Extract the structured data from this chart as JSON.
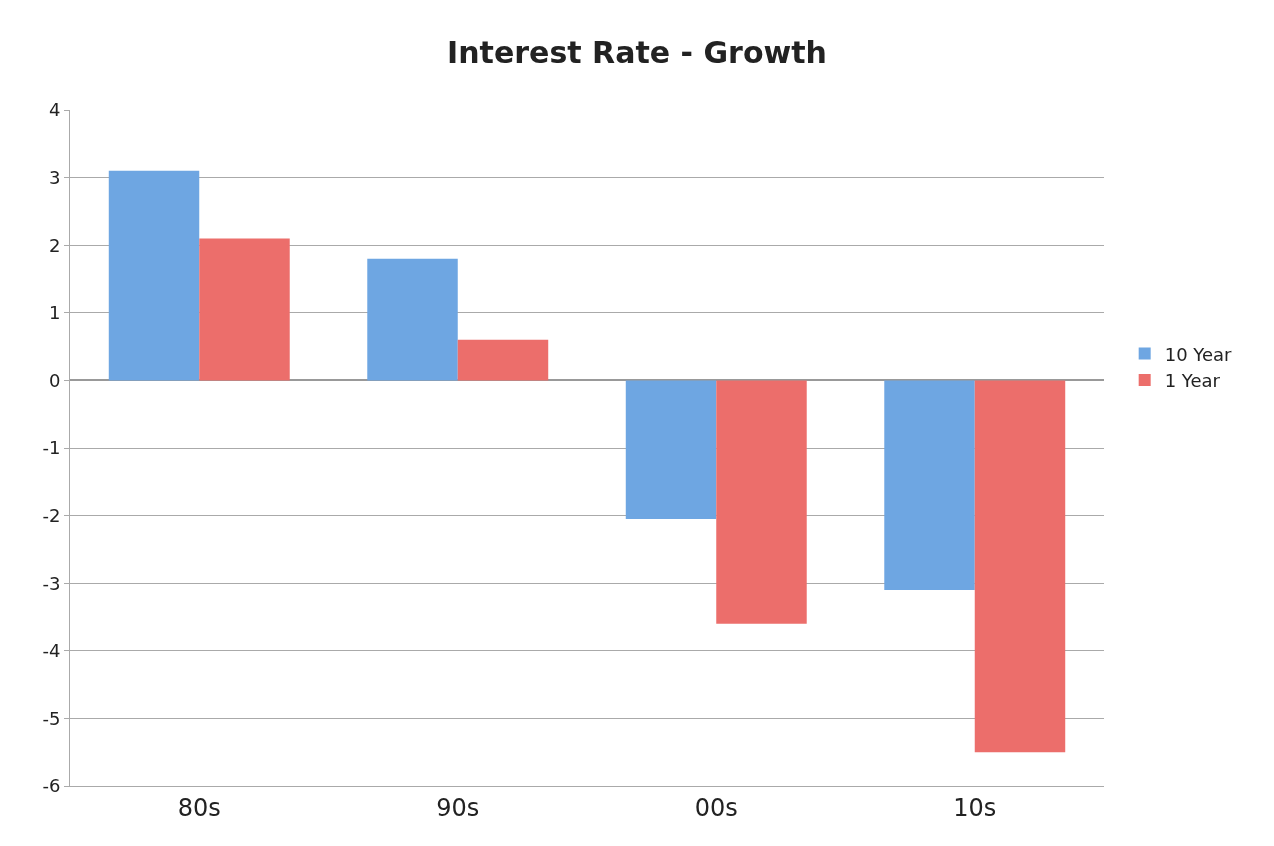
{
  "chart_data": {
    "type": "bar",
    "title": "Interest Rate - Growth",
    "categories": [
      "80s",
      "90s",
      "00s",
      "10s"
    ],
    "series": [
      {
        "name": "10 Year",
        "color": "#6ea6e2",
        "values": [
          3.1,
          1.8,
          -2.05,
          -3.1
        ]
      },
      {
        "name": "1 Year",
        "color": "#ec6e6b",
        "values": [
          2.1,
          0.6,
          -3.6,
          -5.5
        ]
      }
    ],
    "ylim": [
      -6,
      4
    ],
    "yticks": [
      -6,
      -5,
      -4,
      -3,
      -2,
      -1,
      0,
      1,
      2,
      3,
      4
    ],
    "grid": "y",
    "legend": "right"
  }
}
